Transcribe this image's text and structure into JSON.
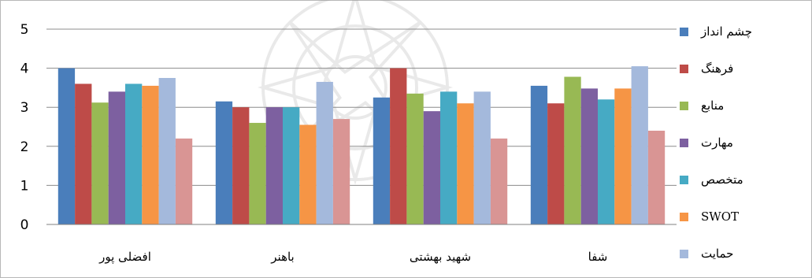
{
  "chart_data": {
    "type": "bar",
    "title": "",
    "xlabel": "",
    "ylabel": "",
    "ylim": [
      0,
      5
    ],
    "yticks": [
      "0",
      "1",
      "2",
      "3",
      "4",
      "5"
    ],
    "grid": true,
    "legend_position": "right",
    "categories": [
      "افضلی پور",
      "باهنر",
      "شهید بهشتی",
      "شفا"
    ],
    "series": [
      {
        "name": "چشم انداز",
        "color": "#4a7ebb",
        "values": [
          4.0,
          3.15,
          3.25,
          3.55
        ]
      },
      {
        "name": "فرهنگ",
        "color": "#be4b48",
        "values": [
          3.6,
          3.0,
          4.0,
          3.1
        ]
      },
      {
        "name": "منابع",
        "color": "#98b954",
        "values": [
          3.12,
          2.6,
          3.35,
          3.78
        ]
      },
      {
        "name": "مهارت",
        "color": "#7d60a0",
        "values": [
          3.4,
          3.0,
          2.9,
          3.48
        ]
      },
      {
        "name": "متخصص",
        "color": "#46aac4",
        "values": [
          3.6,
          3.0,
          3.4,
          3.2
        ]
      },
      {
        "name": "SWOT",
        "color": "#f69545",
        "values": [
          3.55,
          2.55,
          3.1,
          3.48
        ]
      },
      {
        "name": "حمایت",
        "color": "#a4b9dc",
        "values": [
          3.75,
          3.65,
          3.4,
          4.05
        ]
      },
      {
        "name": "",
        "color": "#d99594",
        "values": [
          2.2,
          2.7,
          2.2,
          2.4
        ]
      }
    ]
  }
}
